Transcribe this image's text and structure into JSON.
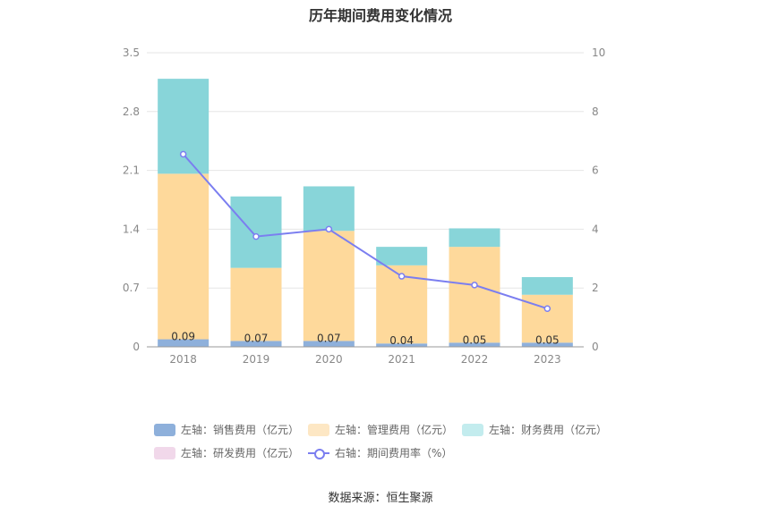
{
  "chart_data": {
    "type": "bar",
    "title": "历年期间费用变化情况",
    "categories": [
      "2018",
      "2019",
      "2020",
      "2021",
      "2022",
      "2023"
    ],
    "left_axis": {
      "ticks": [
        "0",
        "0.7",
        "1.4",
        "2.1",
        "2.8",
        "3.5"
      ],
      "range": [
        0,
        3.5
      ]
    },
    "right_axis": {
      "ticks": [
        "0",
        "2",
        "4",
        "6",
        "8",
        "10"
      ],
      "range": [
        0,
        10
      ]
    },
    "series": [
      {
        "name": "左轴：销售费用（亿元）",
        "type": "bar",
        "axis": "left",
        "color": "#8eb0db",
        "values": [
          0.09,
          0.07,
          0.07,
          0.04,
          0.05,
          0.05
        ],
        "labels": [
          "0.09",
          "0.07",
          "0.07",
          "0.04",
          "0.05",
          "0.05"
        ]
      },
      {
        "name": "左轴：管理费用（亿元）",
        "type": "bar",
        "axis": "left",
        "color": "#fed99b",
        "values": [
          1.97,
          0.87,
          1.31,
          0.93,
          1.14,
          0.57
        ]
      },
      {
        "name": "左轴：财务费用（亿元）",
        "type": "bar",
        "axis": "left",
        "color": "#88d5d9",
        "values": [
          1.13,
          0.85,
          0.53,
          0.22,
          0.22,
          0.21
        ]
      },
      {
        "name": "左轴：研发费用（亿元）",
        "type": "bar",
        "axis": "left",
        "color": "#f1d8ea",
        "values": [
          0,
          0,
          0,
          0,
          0,
          0
        ]
      },
      {
        "name": "右轴：期间费用率（%）",
        "type": "line",
        "axis": "right",
        "color": "#7b7ef0",
        "values": [
          6.55,
          3.75,
          4.0,
          2.4,
          2.1,
          1.3
        ]
      }
    ],
    "grid": true,
    "legend": "bottom"
  },
  "legend_swatch_colors": {
    "销售": "#8eb0db",
    "管理": "#fde7c4",
    "财务": "#c3ecee",
    "研发": "#f1d8ea"
  },
  "source": "数据来源：恒生聚源"
}
